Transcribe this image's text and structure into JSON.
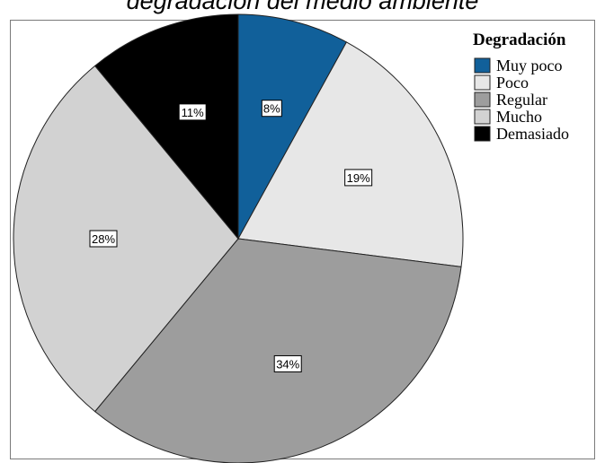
{
  "page_title_partial": "degradación del medio ambiente",
  "chart_data": {
    "type": "pie",
    "title": "",
    "legend_title": "Degradación",
    "legend_position": "top-right",
    "slices": [
      {
        "name": "Muy poco",
        "value": 8,
        "label": "8%",
        "color": "#11609a"
      },
      {
        "name": "Poco",
        "value": 19,
        "label": "19%",
        "color": "#e7e7e7"
      },
      {
        "name": "Regular",
        "value": 34,
        "label": "34%",
        "color": "#9d9d9d"
      },
      {
        "name": "Mucho",
        "value": 28,
        "label": "28%",
        "color": "#d2d2d2"
      },
      {
        "name": "Demasiado",
        "value": 11,
        "label": "11%",
        "color": "#000000"
      }
    ]
  }
}
